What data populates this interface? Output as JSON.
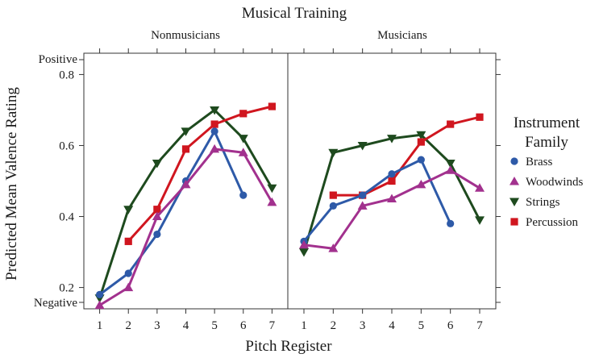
{
  "chart_data": {
    "type": "line",
    "title": "Musical Training",
    "xlabel": "Pitch Register",
    "ylabel": "Predicted Mean Valence Rating",
    "x": [
      1,
      2,
      3,
      4,
      5,
      6,
      7
    ],
    "x_tick_labels": [
      "1",
      "2",
      "3",
      "4",
      "5",
      "6",
      "7"
    ],
    "ylim": [
      0.14,
      0.86
    ],
    "y_ticks": [
      0.2,
      0.4,
      0.6,
      0.8
    ],
    "y_tick_labels": [
      "0.2",
      "0.4",
      "0.6",
      "0.8"
    ],
    "y_anchor_labels": {
      "top": "Positive",
      "bottom": "Negative"
    },
    "grid": false,
    "legend": {
      "title_line1": "Instrument",
      "title_line2": "Family",
      "placement": "right",
      "entries": [
        {
          "name": "Brass",
          "color": "#2e5aa8",
          "marker": "circle"
        },
        {
          "name": "Woodwinds",
          "color": "#a2318e",
          "marker": "triangle-up"
        },
        {
          "name": "Strings",
          "color": "#1e4a1e",
          "marker": "triangle-down"
        },
        {
          "name": "Percussion",
          "color": "#d0161f",
          "marker": "square"
        }
      ]
    },
    "panels": [
      {
        "label": "Nonmusicians",
        "series": [
          {
            "name": "Strings",
            "x": [
              1,
              2,
              3,
              4,
              5,
              6,
              7
            ],
            "values": [
              0.17,
              0.42,
              0.55,
              0.64,
              0.7,
              0.62,
              0.48
            ]
          },
          {
            "name": "Percussion",
            "x": [
              2,
              3,
              4,
              5,
              6,
              7
            ],
            "values": [
              0.33,
              0.42,
              0.59,
              0.66,
              0.69,
              0.71
            ]
          },
          {
            "name": "Brass",
            "x": [
              1,
              2,
              3,
              4,
              5,
              6
            ],
            "values": [
              0.18,
              0.24,
              0.35,
              0.5,
              0.64,
              0.46
            ]
          },
          {
            "name": "Woodwinds",
            "x": [
              1,
              2,
              3,
              4,
              5,
              6,
              7
            ],
            "values": [
              0.15,
              0.2,
              0.4,
              0.49,
              0.59,
              0.58,
              0.44
            ]
          }
        ]
      },
      {
        "label": "Musicians",
        "series": [
          {
            "name": "Strings",
            "x": [
              1,
              2,
              3,
              4,
              5,
              6,
              7
            ],
            "values": [
              0.3,
              0.58,
              0.6,
              0.62,
              0.63,
              0.55,
              0.39
            ]
          },
          {
            "name": "Percussion",
            "x": [
              2,
              3,
              4,
              5,
              6,
              7
            ],
            "values": [
              0.46,
              0.46,
              0.5,
              0.61,
              0.66,
              0.68
            ]
          },
          {
            "name": "Brass",
            "x": [
              1,
              2,
              3,
              4,
              5,
              6
            ],
            "values": [
              0.33,
              0.43,
              0.46,
              0.52,
              0.56,
              0.38
            ]
          },
          {
            "name": "Woodwinds",
            "x": [
              1,
              2,
              3,
              4,
              5,
              6,
              7
            ],
            "values": [
              0.32,
              0.31,
              0.43,
              0.45,
              0.49,
              0.53,
              0.48
            ]
          }
        ]
      }
    ]
  }
}
